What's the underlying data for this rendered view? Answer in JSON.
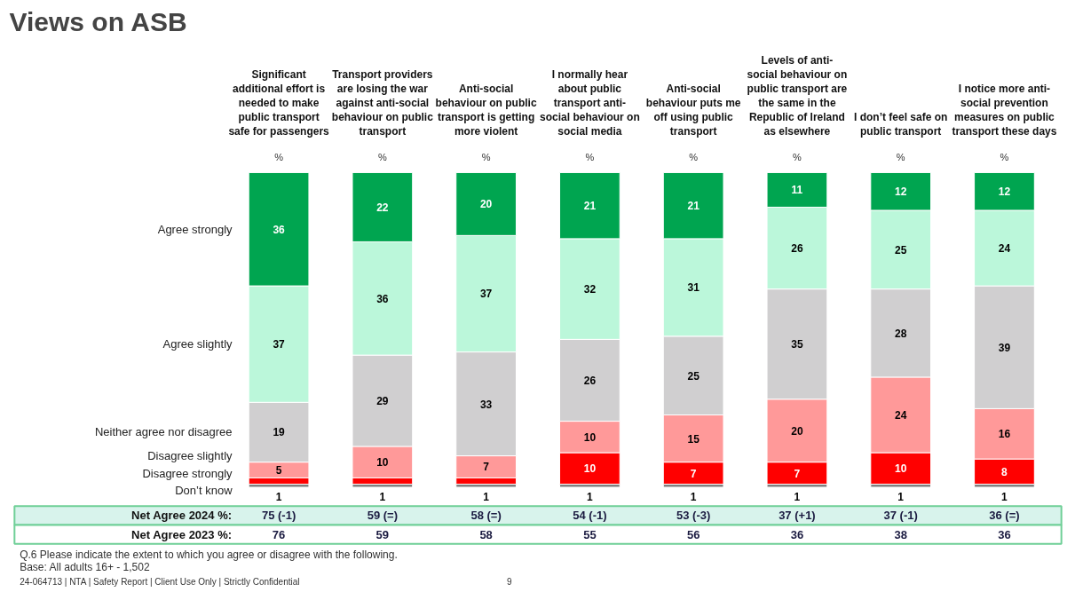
{
  "chart_data": {
    "type": "bar",
    "title": "Views on ASB",
    "ylabel": "%",
    "stacked": true,
    "legend": "left",
    "grid": false,
    "categories": [
      "Significant additional effort is needed to make public transport safe for passengers",
      "Transport providers are losing the war against anti-social behaviour on public transport",
      "Anti-social behaviour on public transport is getting more violent",
      "I normally hear about public transport anti-social behaviour on social media",
      "Anti-social behaviour puts me off using public transport",
      "Levels of anti-social behaviour on public transport are the same in the Republic of Ireland as elsewhere",
      "I don’t feel safe on public transport",
      "I notice more anti-social prevention measures on public transport these days"
    ],
    "series": [
      {
        "name": "Don’t know",
        "color": "#808080",
        "values": [
          1,
          1,
          1,
          1,
          1,
          1,
          1,
          1
        ],
        "value_labels": [
          "1",
          "1",
          "1",
          "1",
          "1",
          "1",
          "1",
          "1"
        ]
      },
      {
        "name": "Disagree strongly",
        "color": "#ff0000",
        "values": [
          2,
          2,
          2,
          10,
          7,
          7,
          10,
          8
        ],
        "value_labels": [
          null,
          null,
          null,
          "10",
          "7",
          "7",
          "10",
          "8"
        ]
      },
      {
        "name": "Disagree slightly",
        "color": "#ff9999",
        "values": [
          5,
          10,
          7,
          10,
          15,
          20,
          24,
          16
        ],
        "value_labels": [
          "5",
          "10",
          "7",
          "10",
          "15",
          "20",
          "24",
          "16"
        ]
      },
      {
        "name": "Neither agree nor disagree",
        "color": "#d0cfd0",
        "values": [
          19,
          29,
          33,
          26,
          25,
          35,
          28,
          39
        ],
        "value_labels": [
          "19",
          "29",
          "33",
          "26",
          "25",
          "35",
          "28",
          "39"
        ]
      },
      {
        "name": "Agree slightly",
        "color": "#bbf7da",
        "values": [
          37,
          36,
          37,
          32,
          31,
          26,
          25,
          24
        ],
        "value_labels": [
          "37",
          "36",
          "37",
          "32",
          "31",
          "26",
          "25",
          "24"
        ]
      },
      {
        "name": "Agree strongly",
        "color": "#00a550",
        "values": [
          36,
          22,
          20,
          21,
          21,
          11,
          12,
          12
        ],
        "value_labels": [
          "36",
          "22",
          "20",
          "21",
          "21",
          "11",
          "12",
          "12"
        ]
      }
    ],
    "annotations": [
      "Net Agree 2024 %:",
      "75 (-1)",
      "59 (=)",
      "58 (=)",
      "54 (-1)",
      "53 (-3)",
      "37 (+1)",
      "37 (-1)",
      "36 (=)",
      "Net Agree 2023 %:",
      "76",
      "59",
      "58",
      "55",
      "56",
      "36",
      "38",
      "36",
      "Q.6 Please indicate the extent to which you agree or disagree with the following.",
      "Base: All adults 16+ - 1,502",
      "24-064713 | NTA | Safety Report | Client Use Only | Strictly Confidential",
      "9"
    ]
  }
}
